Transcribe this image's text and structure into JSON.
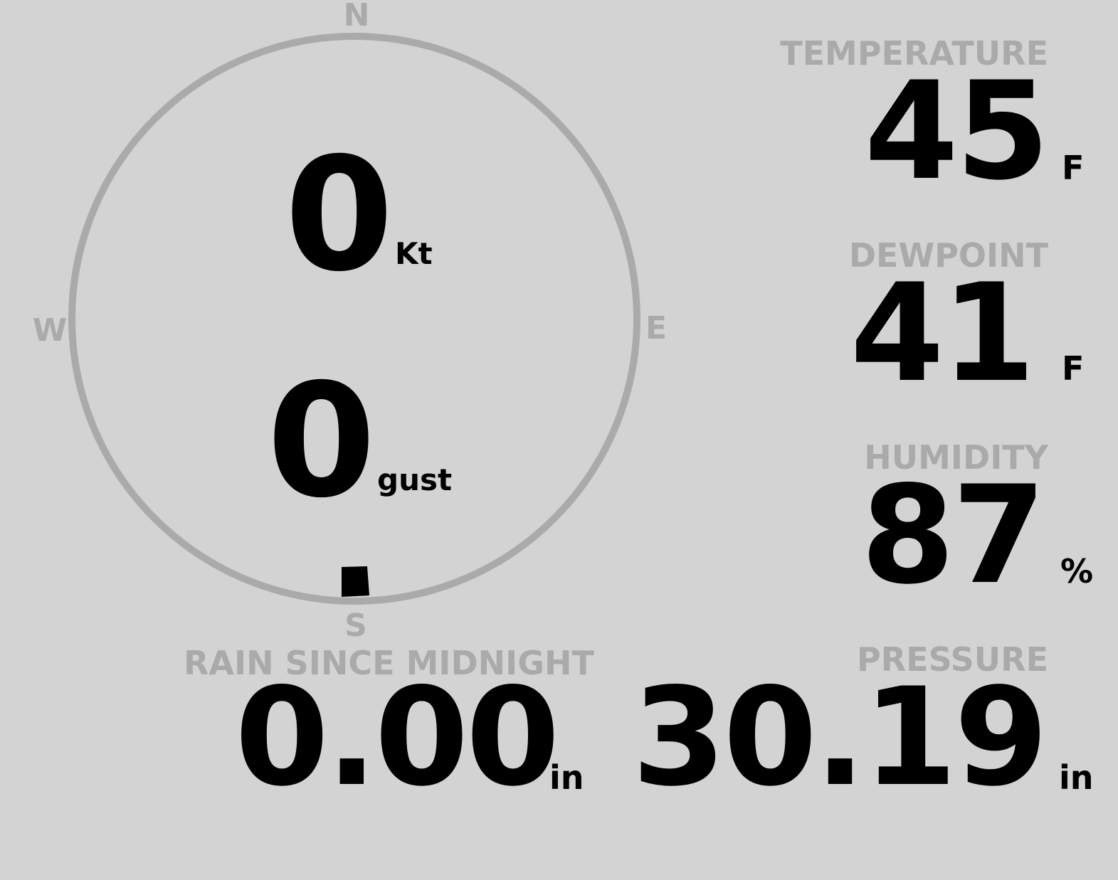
{
  "compass": {
    "north": "N",
    "east": "E",
    "south": "S",
    "west": "W",
    "ring_color": "#aaaaaa",
    "wind_direction_deg": 180
  },
  "wind": {
    "speed": "0",
    "speed_unit": "Kt",
    "gust": "0",
    "gust_unit": "gust"
  },
  "temperature": {
    "label": "TEMPERATURE",
    "value": "45",
    "unit": "F"
  },
  "dewpoint": {
    "label": "DEWPOINT",
    "value": "41",
    "unit": "F"
  },
  "humidity": {
    "label": "HUMIDITY",
    "value": "87",
    "unit": "%"
  },
  "pressure": {
    "label": "PRESSURE",
    "value": "30.19",
    "unit": "in"
  },
  "rain": {
    "label": "RAIN SINCE MIDNIGHT",
    "value": "0.00",
    "unit": "in"
  }
}
